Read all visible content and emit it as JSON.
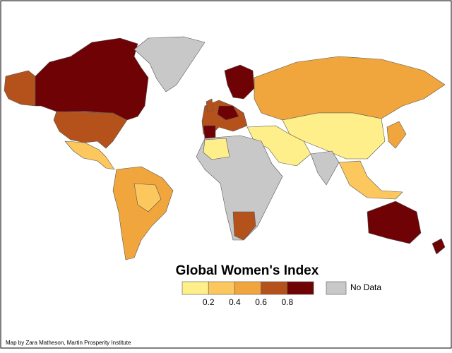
{
  "title": "Global Women's Index",
  "legend": {
    "colors": [
      "#ffef8a",
      "#fcc85e",
      "#f0a63c",
      "#b5521c",
      "#6e0205"
    ],
    "ticks": [
      0.2,
      0.4,
      0.6,
      0.8
    ]
  },
  "no_data": {
    "label": "No Data",
    "color": "#c8c8c8"
  },
  "credit": "Map by Zara Matheson, Martin Prosperity Institute"
}
